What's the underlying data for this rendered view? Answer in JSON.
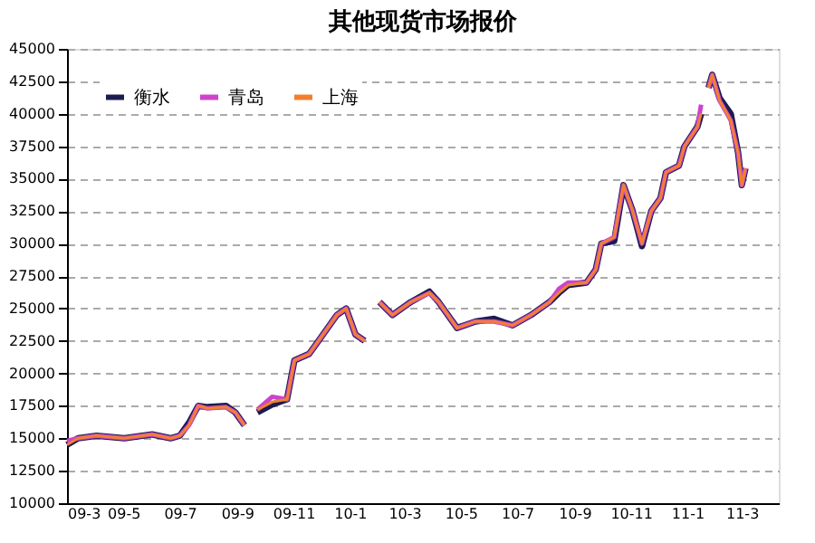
{
  "chart_data": {
    "type": "line",
    "title": "其他现货市场报价",
    "x": [
      "2009-03-01",
      "2009-03-13",
      "2009-04-02",
      "2009-05-02",
      "2009-06-01",
      "2009-06-21",
      "2009-07-01",
      "2009-07-11",
      "2009-07-21",
      "2009-07-31",
      "2009-08-20",
      "2009-08-30",
      "2009-09-09",
      "2009-09-16",
      "2009-09-23",
      "2009-10-09",
      "2009-10-25",
      "2009-11-02",
      "2009-11-18",
      "2009-11-28",
      "2009-12-18",
      "2009-12-28",
      "2010-01-07",
      "2010-01-17",
      "2010-01-25",
      "2010-02-02",
      "2010-02-16",
      "2010-03-08",
      "2010-03-28",
      "2010-04-07",
      "2010-04-27",
      "2010-05-17",
      "2010-06-06",
      "2010-06-26",
      "2010-07-16",
      "2010-08-05",
      "2010-08-15",
      "2010-08-25",
      "2010-09-14",
      "2010-09-24",
      "2010-09-30",
      "2010-10-14",
      "2010-10-24",
      "2010-11-03",
      "2010-11-13",
      "2010-11-23",
      "2010-12-03",
      "2010-12-09",
      "2010-12-23",
      "2010-12-29",
      "2011-01-12",
      "2011-01-16",
      "2011-01-20",
      "2011-01-24",
      "2011-01-28",
      "2011-02-05",
      "2011-02-17",
      "2011-02-25",
      "2011-03-01",
      "2011-03-05"
    ],
    "series": [
      {
        "name": "衡水",
        "color": "#1c1c50",
        "values": [
          14500,
          15000,
          15200,
          15000,
          15300,
          15000,
          15200,
          16200,
          17500,
          17400,
          17500,
          17000,
          16000,
          null,
          17000,
          17600,
          18000,
          21000,
          21500,
          22500,
          24500,
          25000,
          23000,
          22500,
          null,
          25500,
          24500,
          25500,
          26300,
          25500,
          23500,
          24000,
          24200,
          23700,
          24500,
          25500,
          26200,
          26800,
          27000,
          28000,
          30000,
          30200,
          34500,
          32500,
          29800,
          32500,
          33500,
          35500,
          36000,
          37500,
          39000,
          40000,
          null,
          42000,
          43000,
          41200,
          40000,
          37000,
          34500,
          35800
        ]
      },
      {
        "name": "青岛",
        "color": "#cc44cc",
        "values": [
          14800,
          15000,
          15200,
          15000,
          15300,
          15000,
          15200,
          16000,
          17500,
          17300,
          17400,
          17000,
          16000,
          null,
          17200,
          18200,
          18000,
          21000,
          21500,
          22500,
          24500,
          25000,
          23000,
          22500,
          null,
          25500,
          24500,
          25500,
          26200,
          25500,
          23500,
          24000,
          24000,
          23700,
          24500,
          25500,
          26500,
          27000,
          27000,
          28000,
          30000,
          30500,
          34500,
          32500,
          30000,
          32500,
          33500,
          35500,
          36000,
          37500,
          39000,
          40700,
          null,
          42000,
          43000,
          41000,
          39500,
          37000,
          34500,
          35800
        ]
      },
      {
        "name": "上海",
        "color": "#f08030",
        "values": [
          14500,
          15000,
          15200,
          15000,
          15300,
          15000,
          15200,
          16000,
          17500,
          17300,
          17400,
          17000,
          16000,
          null,
          17200,
          17800,
          18000,
          21000,
          21500,
          22500,
          24500,
          25000,
          23000,
          22500,
          null,
          25500,
          24500,
          25500,
          26200,
          25500,
          23500,
          24000,
          24000,
          23700,
          24500,
          25500,
          26200,
          26800,
          27000,
          28000,
          30000,
          30500,
          34500,
          32500,
          30000,
          32500,
          33500,
          35500,
          36000,
          37500,
          39000,
          40000,
          null,
          42000,
          43000,
          41000,
          39500,
          37000,
          34500,
          35800
        ]
      }
    ],
    "xlim": [
      "2009-03-01",
      "2011-04-10"
    ],
    "xticks": [
      {
        "value": "2009-03-01",
        "label": "09-3"
      },
      {
        "value": "2009-05-01",
        "label": "09-5"
      },
      {
        "value": "2009-07-01",
        "label": "09-7"
      },
      {
        "value": "2009-09-01",
        "label": "09-9"
      },
      {
        "value": "2009-11-01",
        "label": "09-11"
      },
      {
        "value": "2010-01-01",
        "label": "10-1"
      },
      {
        "value": "2010-03-01",
        "label": "10-3"
      },
      {
        "value": "2010-05-01",
        "label": "10-5"
      },
      {
        "value": "2010-07-01",
        "label": "10-7"
      },
      {
        "value": "2010-09-01",
        "label": "10-9"
      },
      {
        "value": "2010-11-01",
        "label": "10-11"
      },
      {
        "value": "2011-01-01",
        "label": "11-1"
      },
      {
        "value": "2011-03-01",
        "label": "11-3"
      }
    ],
    "ylim": [
      10000,
      45000
    ],
    "yticks": [
      {
        "value": 10000,
        "label": "10000"
      },
      {
        "value": 12500,
        "label": "12500"
      },
      {
        "value": 15000,
        "label": "15000"
      },
      {
        "value": 17500,
        "label": "17500"
      },
      {
        "value": 20000,
        "label": "20000"
      },
      {
        "value": 22500,
        "label": "22500"
      },
      {
        "value": 25000,
        "label": "25000"
      },
      {
        "value": 27500,
        "label": "27500"
      },
      {
        "value": 30000,
        "label": "30000"
      },
      {
        "value": 32500,
        "label": "32500"
      },
      {
        "value": 35000,
        "label": "35000"
      },
      {
        "value": 37500,
        "label": "37500"
      },
      {
        "value": 40000,
        "label": "40000"
      },
      {
        "value": 42500,
        "label": "42500"
      },
      {
        "value": 45000,
        "label": "45000"
      }
    ],
    "grid": "y",
    "legend": "top left",
    "marker": "none",
    "line_style": "solid"
  }
}
